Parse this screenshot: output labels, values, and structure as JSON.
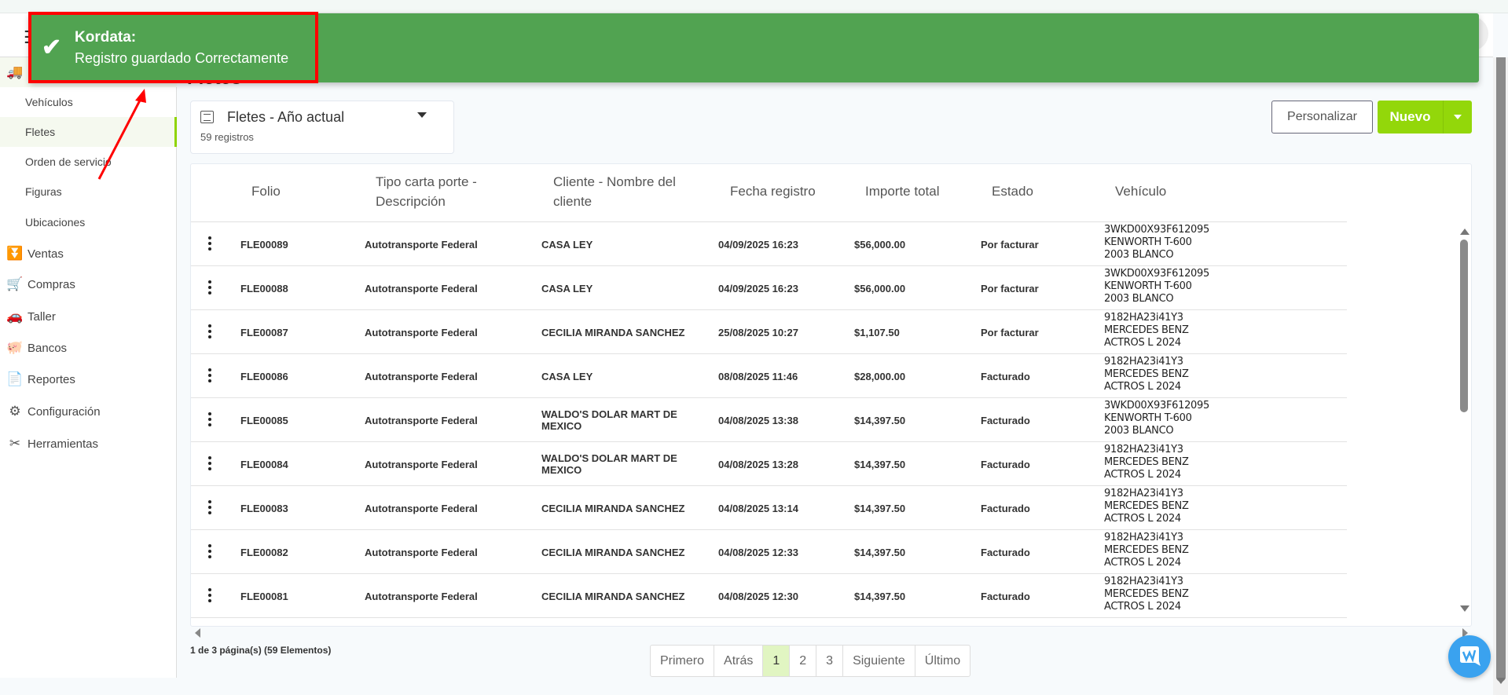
{
  "toast": {
    "title": "Kordata:",
    "message": "Registro guardado Correctamente",
    "icon": "check-icon",
    "color": "#51a351"
  },
  "header": {
    "menu_icon": "hamburger-icon"
  },
  "sidebar": {
    "sub_items": [
      {
        "label": "Vehículos"
      },
      {
        "label": "Fletes",
        "active": true
      },
      {
        "label": "Orden de servicio"
      },
      {
        "label": "Figuras"
      },
      {
        "label": "Ubicaciones"
      }
    ],
    "main_items": [
      {
        "label": "Ventas",
        "icon": "sales-funnel-icon"
      },
      {
        "label": "Compras",
        "icon": "cart-icon"
      },
      {
        "label": "Taller",
        "icon": "car-workshop-icon"
      },
      {
        "label": "Bancos",
        "icon": "piggy-bank-icon"
      },
      {
        "label": "Reportes",
        "icon": "report-icon"
      },
      {
        "label": "Configuración",
        "icon": "gear-icon"
      },
      {
        "label": "Herramientas",
        "icon": "tools-icon"
      }
    ]
  },
  "page": {
    "title": "Fletes"
  },
  "view_selector": {
    "title": "Fletes - Año actual",
    "count": "59 registros"
  },
  "toolbar": {
    "customize_label": "Personalizar",
    "new_label": "Nuevo"
  },
  "accent_color": "#93d70a",
  "table": {
    "columns": [
      {
        "label": "Folio"
      },
      {
        "label": "Tipo carta porte - Descripción"
      },
      {
        "label": "Cliente - Nombre del cliente"
      },
      {
        "label": "Fecha registro"
      },
      {
        "label": "Importe total"
      },
      {
        "label": "Estado"
      },
      {
        "label": "Vehículo"
      }
    ],
    "rows": [
      {
        "folio": "FLE00089",
        "tipo": "Autotransporte Federal",
        "cliente": "CASA LEY",
        "fecha": "04/09/2025 16:23",
        "importe": "$56,000.00",
        "estado": "Por facturar",
        "vehiculo": [
          "3WKD00X93F612095",
          "KENWORTH T-600",
          "2003 BLANCO"
        ]
      },
      {
        "folio": "FLE00088",
        "tipo": "Autotransporte Federal",
        "cliente": "CASA LEY",
        "fecha": "04/09/2025 16:23",
        "importe": "$56,000.00",
        "estado": "Por facturar",
        "vehiculo": [
          "3WKD00X93F612095",
          "KENWORTH T-600",
          "2003 BLANCO"
        ]
      },
      {
        "folio": "FLE00087",
        "tipo": "Autotransporte Federal",
        "cliente": "CECILIA MIRANDA SANCHEZ",
        "fecha": "25/08/2025 10:27",
        "importe": "$1,107.50",
        "estado": "Por facturar",
        "vehiculo": [
          "9182HA23i41Y3",
          "MERCEDES BENZ",
          "ACTROS L 2024"
        ]
      },
      {
        "folio": "FLE00086",
        "tipo": "Autotransporte Federal",
        "cliente": "CASA LEY",
        "fecha": "08/08/2025 11:46",
        "importe": "$28,000.00",
        "estado": "Facturado",
        "vehiculo": [
          "9182HA23i41Y3",
          "MERCEDES BENZ",
          "ACTROS L 2024"
        ]
      },
      {
        "folio": "FLE00085",
        "tipo": "Autotransporte Federal",
        "cliente": "WALDO'S DOLAR MART DE MEXICO",
        "fecha": "04/08/2025 13:38",
        "importe": "$14,397.50",
        "estado": "Facturado",
        "vehiculo": [
          "3WKD00X93F612095",
          "KENWORTH T-600",
          "2003 BLANCO"
        ]
      },
      {
        "folio": "FLE00084",
        "tipo": "Autotransporte Federal",
        "cliente": "WALDO'S DOLAR MART DE MEXICO",
        "fecha": "04/08/2025 13:28",
        "importe": "$14,397.50",
        "estado": "Facturado",
        "vehiculo": [
          "9182HA23i41Y3",
          "MERCEDES BENZ",
          "ACTROS L 2024"
        ]
      },
      {
        "folio": "FLE00083",
        "tipo": "Autotransporte Federal",
        "cliente": "CECILIA MIRANDA SANCHEZ",
        "fecha": "04/08/2025 13:14",
        "importe": "$14,397.50",
        "estado": "Facturado",
        "vehiculo": [
          "9182HA23i41Y3",
          "MERCEDES BENZ",
          "ACTROS L 2024"
        ]
      },
      {
        "folio": "FLE00082",
        "tipo": "Autotransporte Federal",
        "cliente": "CECILIA MIRANDA SANCHEZ",
        "fecha": "04/08/2025 12:33",
        "importe": "$14,397.50",
        "estado": "Facturado",
        "vehiculo": [
          "9182HA23i41Y3",
          "MERCEDES BENZ",
          "ACTROS L 2024"
        ]
      },
      {
        "folio": "FLE00081",
        "tipo": "Autotransporte Federal",
        "cliente": "CECILIA MIRANDA SANCHEZ",
        "fecha": "04/08/2025 12:30",
        "importe": "$14,397.50",
        "estado": "Facturado",
        "vehiculo": [
          "9182HA23i41Y3",
          "MERCEDES BENZ",
          "ACTROS L 2024"
        ]
      }
    ]
  },
  "pagination": {
    "info": "1 de 3 página(s) (59 Elementos)",
    "buttons": [
      {
        "label": "Primero"
      },
      {
        "label": "Atrás"
      },
      {
        "label": "1",
        "active": true
      },
      {
        "label": "2"
      },
      {
        "label": "3"
      },
      {
        "label": "Siguiente"
      },
      {
        "label": "Último"
      }
    ]
  },
  "annotation": {
    "color": "#ff0000"
  }
}
